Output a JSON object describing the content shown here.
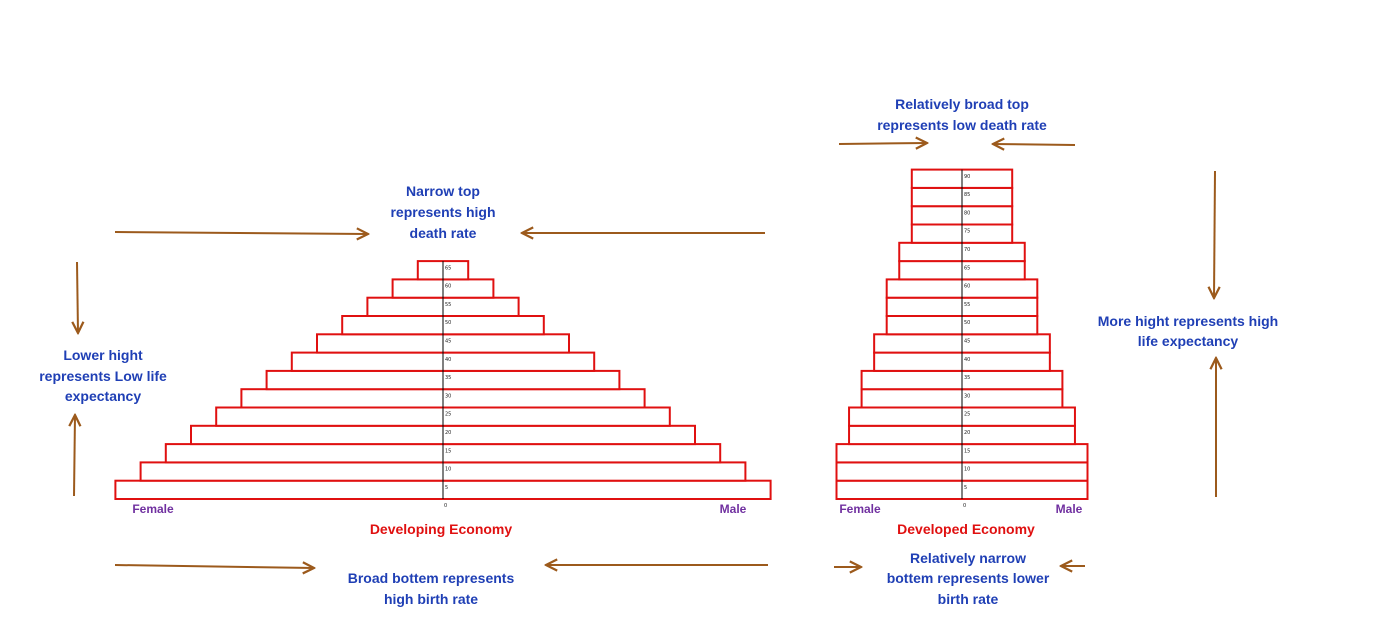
{
  "colors": {
    "bar_stroke": "#e01010",
    "annotation_text": "#1f3fb5",
    "title_text": "#e01010",
    "gender_label": "#7030a0",
    "arrow": "#9c5a1c"
  },
  "chart_data": [
    {
      "type": "bar",
      "subtype": "population-pyramid",
      "title": "Developing Economy",
      "left_label": "Female",
      "right_label": "Male",
      "zero_label": "0",
      "age_ticks": [
        "5",
        "10",
        "15",
        "20",
        "25",
        "30",
        "35",
        "40",
        "45",
        "50",
        "55",
        "60",
        "65"
      ],
      "relative_half_width": [
        13,
        12,
        11,
        10,
        9,
        8,
        7,
        6,
        5,
        4,
        3,
        2,
        1
      ]
    },
    {
      "type": "bar",
      "subtype": "population-pyramid",
      "title": "Developed Economy",
      "left_label": "Female",
      "right_label": "Male",
      "zero_label": "0",
      "age_ticks": [
        "5",
        "10",
        "15",
        "20",
        "25",
        "30",
        "35",
        "40",
        "45",
        "50",
        "55",
        "60",
        "65",
        "70",
        "75",
        "80",
        "85",
        "90"
      ],
      "relative_half_width": [
        5,
        5,
        5,
        4.5,
        4.5,
        4,
        4,
        3.5,
        3.5,
        3,
        3,
        3,
        2.5,
        2.5,
        2,
        2,
        2,
        2
      ]
    }
  ],
  "annotations": {
    "narrow_top": [
      "Narrow top",
      "represents high",
      "death rate"
    ],
    "low_height": [
      "Lower hight",
      "represents Low life",
      "expectancy"
    ],
    "broad_bottom": [
      "Broad bottem represents",
      "high birth rate"
    ],
    "broad_top": [
      "Relatively broad top",
      "represents low death rate"
    ],
    "more_height": [
      "More hight  represents high",
      "life expectancy"
    ],
    "narrow_bottom": [
      "Relatively narrow",
      "bottem represents lower",
      "birth rate"
    ]
  }
}
